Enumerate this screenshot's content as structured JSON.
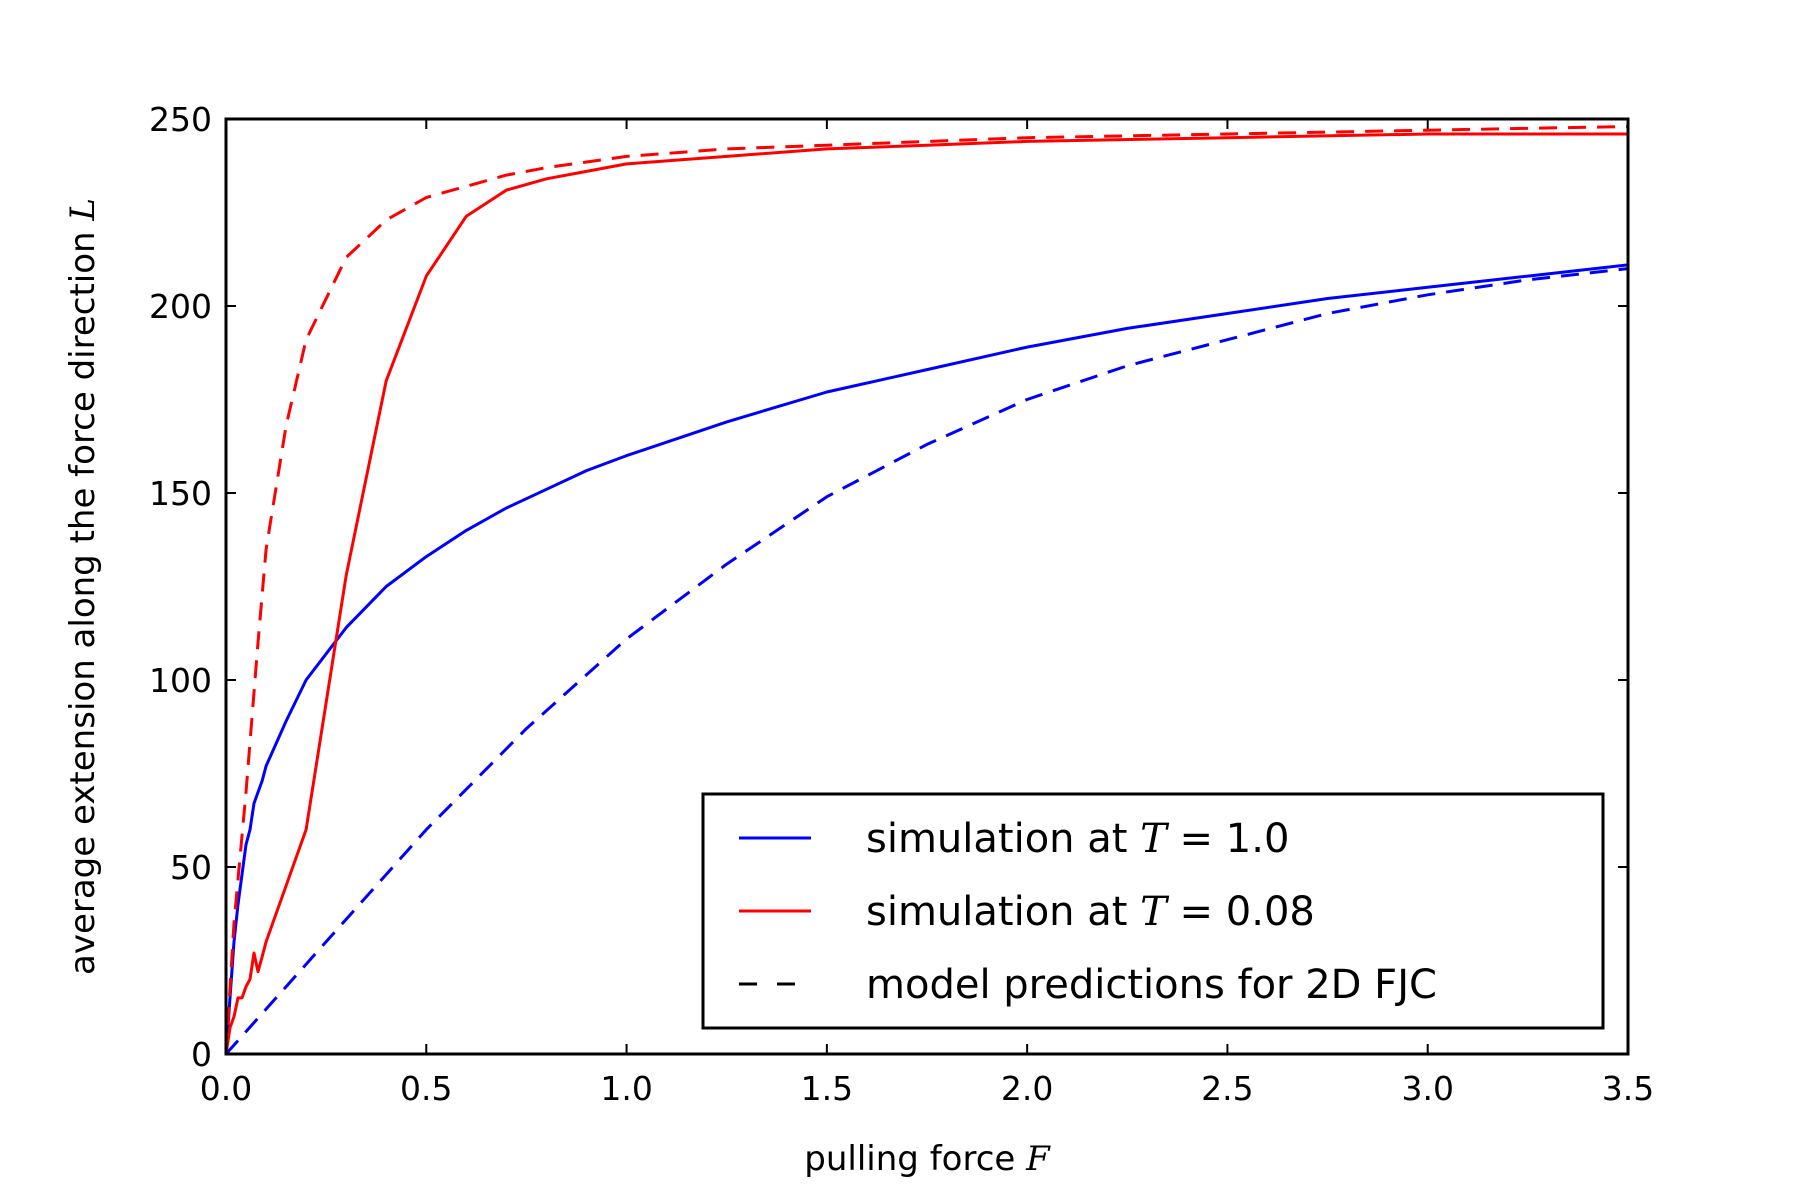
{
  "chart_data": {
    "type": "line",
    "title": "",
    "xlabel": "pulling force",
    "xlabel_symbol": "F",
    "ylabel": "average extension along the force direction",
    "ylabel_symbol": "L",
    "xlim": [
      0,
      3.5
    ],
    "ylim": [
      0,
      250
    ],
    "xticks": [
      0.0,
      0.5,
      1.0,
      1.5,
      2.0,
      2.5,
      3.0,
      3.5
    ],
    "xtick_labels": [
      "0.0",
      "0.5",
      "1.0",
      "1.5",
      "2.0",
      "2.5",
      "3.0",
      "3.5"
    ],
    "yticks": [
      0,
      50,
      100,
      150,
      200,
      250
    ],
    "ytick_labels": [
      "0",
      "50",
      "100",
      "150",
      "200",
      "250"
    ],
    "grid": false,
    "legend_position": "lower-right",
    "legend": [
      {
        "prefix": "simulation at ",
        "symbol": "T",
        "suffix": " = 1.0",
        "color": "#0000ff",
        "style": "solid"
      },
      {
        "prefix": "simulation at ",
        "symbol": "T",
        "suffix": " = 0.08",
        "color": "#ff0000",
        "style": "solid"
      },
      {
        "prefix": "model predictions for 2D FJC",
        "symbol": "",
        "suffix": "",
        "color": "#000000",
        "style": "dashed"
      }
    ],
    "series": [
      {
        "color": "#0000ff",
        "style": "solid",
        "x": [
          0,
          0.01,
          0.02,
          0.03,
          0.04,
          0.05,
          0.06,
          0.07,
          0.08,
          0.09,
          0.1,
          0.15,
          0.2,
          0.3,
          0.4,
          0.5,
          0.6,
          0.7,
          0.8,
          0.9,
          1.0,
          1.25,
          1.5,
          1.75,
          2.0,
          2.25,
          2.5,
          2.75,
          3.0,
          3.25,
          3.5
        ],
        "y": [
          0,
          15,
          30,
          40,
          48,
          56,
          60,
          67,
          70,
          73,
          77,
          89,
          100,
          114,
          125,
          133,
          140,
          146,
          151,
          156,
          160,
          169,
          177,
          183,
          189,
          194,
          198,
          202,
          205,
          208,
          211
        ]
      },
      {
        "color": "#ff0000",
        "style": "solid",
        "x": [
          0,
          0.01,
          0.02,
          0.03,
          0.04,
          0.05,
          0.06,
          0.07,
          0.08,
          0.09,
          0.1,
          0.2,
          0.3,
          0.4,
          0.5,
          0.6,
          0.7,
          0.8,
          0.9,
          1.0,
          1.25,
          1.5,
          1.75,
          2.0,
          2.5,
          3.0,
          3.5
        ],
        "y": [
          0,
          7,
          10,
          15,
          15,
          18,
          20,
          27,
          22,
          26,
          30,
          60,
          128,
          180,
          208,
          224,
          231,
          234,
          236,
          238,
          240,
          242,
          243,
          244,
          245,
          246,
          246
        ]
      },
      {
        "color": "#0000ff",
        "style": "dashed",
        "x": [
          0,
          0.25,
          0.5,
          0.75,
          1.0,
          1.25,
          1.5,
          1.75,
          2.0,
          2.25,
          2.5,
          2.75,
          3.0,
          3.25,
          3.5
        ],
        "y": [
          0,
          30,
          60,
          87,
          111,
          131,
          149,
          163,
          175,
          184,
          191,
          198,
          203,
          207,
          210
        ]
      },
      {
        "color": "#ff0000",
        "style": "dashed",
        "x": [
          0,
          0.02,
          0.05,
          0.08,
          0.1,
          0.15,
          0.2,
          0.3,
          0.4,
          0.5,
          0.6,
          0.7,
          0.8,
          1.0,
          1.25,
          1.5,
          2.0,
          2.5,
          3.0,
          3.5
        ],
        "y": [
          0,
          35,
          70,
          110,
          135,
          168,
          191,
          213,
          223,
          229,
          232,
          235,
          237,
          240,
          242,
          243,
          245,
          246,
          247,
          248
        ]
      }
    ]
  }
}
